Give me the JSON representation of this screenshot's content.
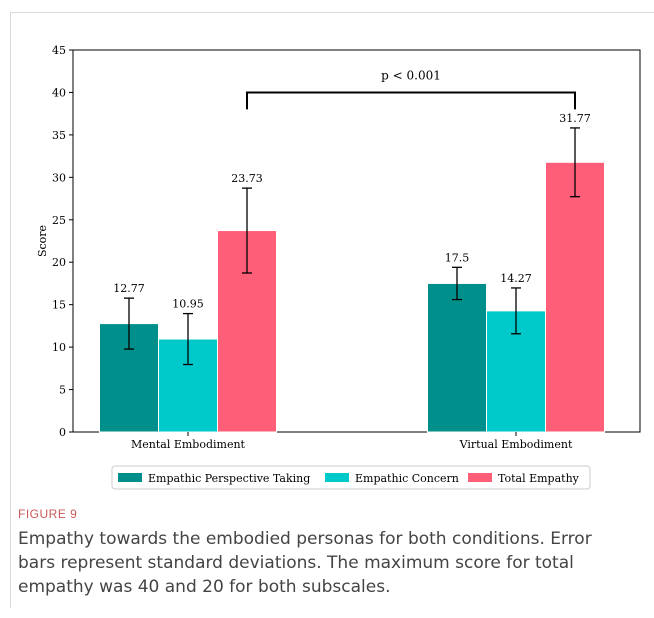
{
  "chart_data": {
    "type": "bar",
    "categories": [
      "Mental Embodiment",
      "Virtual Embodiment"
    ],
    "series": [
      {
        "name": "Empathic Perspective Taking",
        "values": [
          12.77,
          17.5
        ],
        "errors": [
          3.0,
          1.9
        ],
        "labels": [
          "12.77",
          "17.5"
        ],
        "color": "#008f8a"
      },
      {
        "name": "Empathic Concern",
        "values": [
          10.95,
          14.27
        ],
        "errors": [
          3.0,
          2.7
        ],
        "labels": [
          "10.95",
          "14.27"
        ],
        "color": "#00c9c9"
      },
      {
        "name": "Total Empathy",
        "values": [
          23.73,
          31.77
        ],
        "errors": [
          5.0,
          4.05
        ],
        "labels": [
          "23.73",
          "31.77"
        ],
        "color": "#ff5e78"
      }
    ],
    "ylabel": "Score",
    "xlabel": "",
    "ylim": [
      0,
      45
    ],
    "yticks": [
      "0",
      "5",
      "10",
      "15",
      "20",
      "25",
      "30",
      "35",
      "40",
      "45"
    ],
    "grid": false,
    "legend_position": "bottom",
    "annotation": {
      "text": "p < 0.001",
      "from_series": "Total Empathy",
      "between": [
        "Mental Embodiment",
        "Virtual Embodiment"
      ],
      "y": 40.0,
      "drop": 38.0
    }
  },
  "caption": {
    "label": "FIGURE 9",
    "text": "Empathy towards the embodied personas for both conditions. Error bars represent standard deviations. The maximum score for total empathy was 40 and 20 for both subscales."
  }
}
